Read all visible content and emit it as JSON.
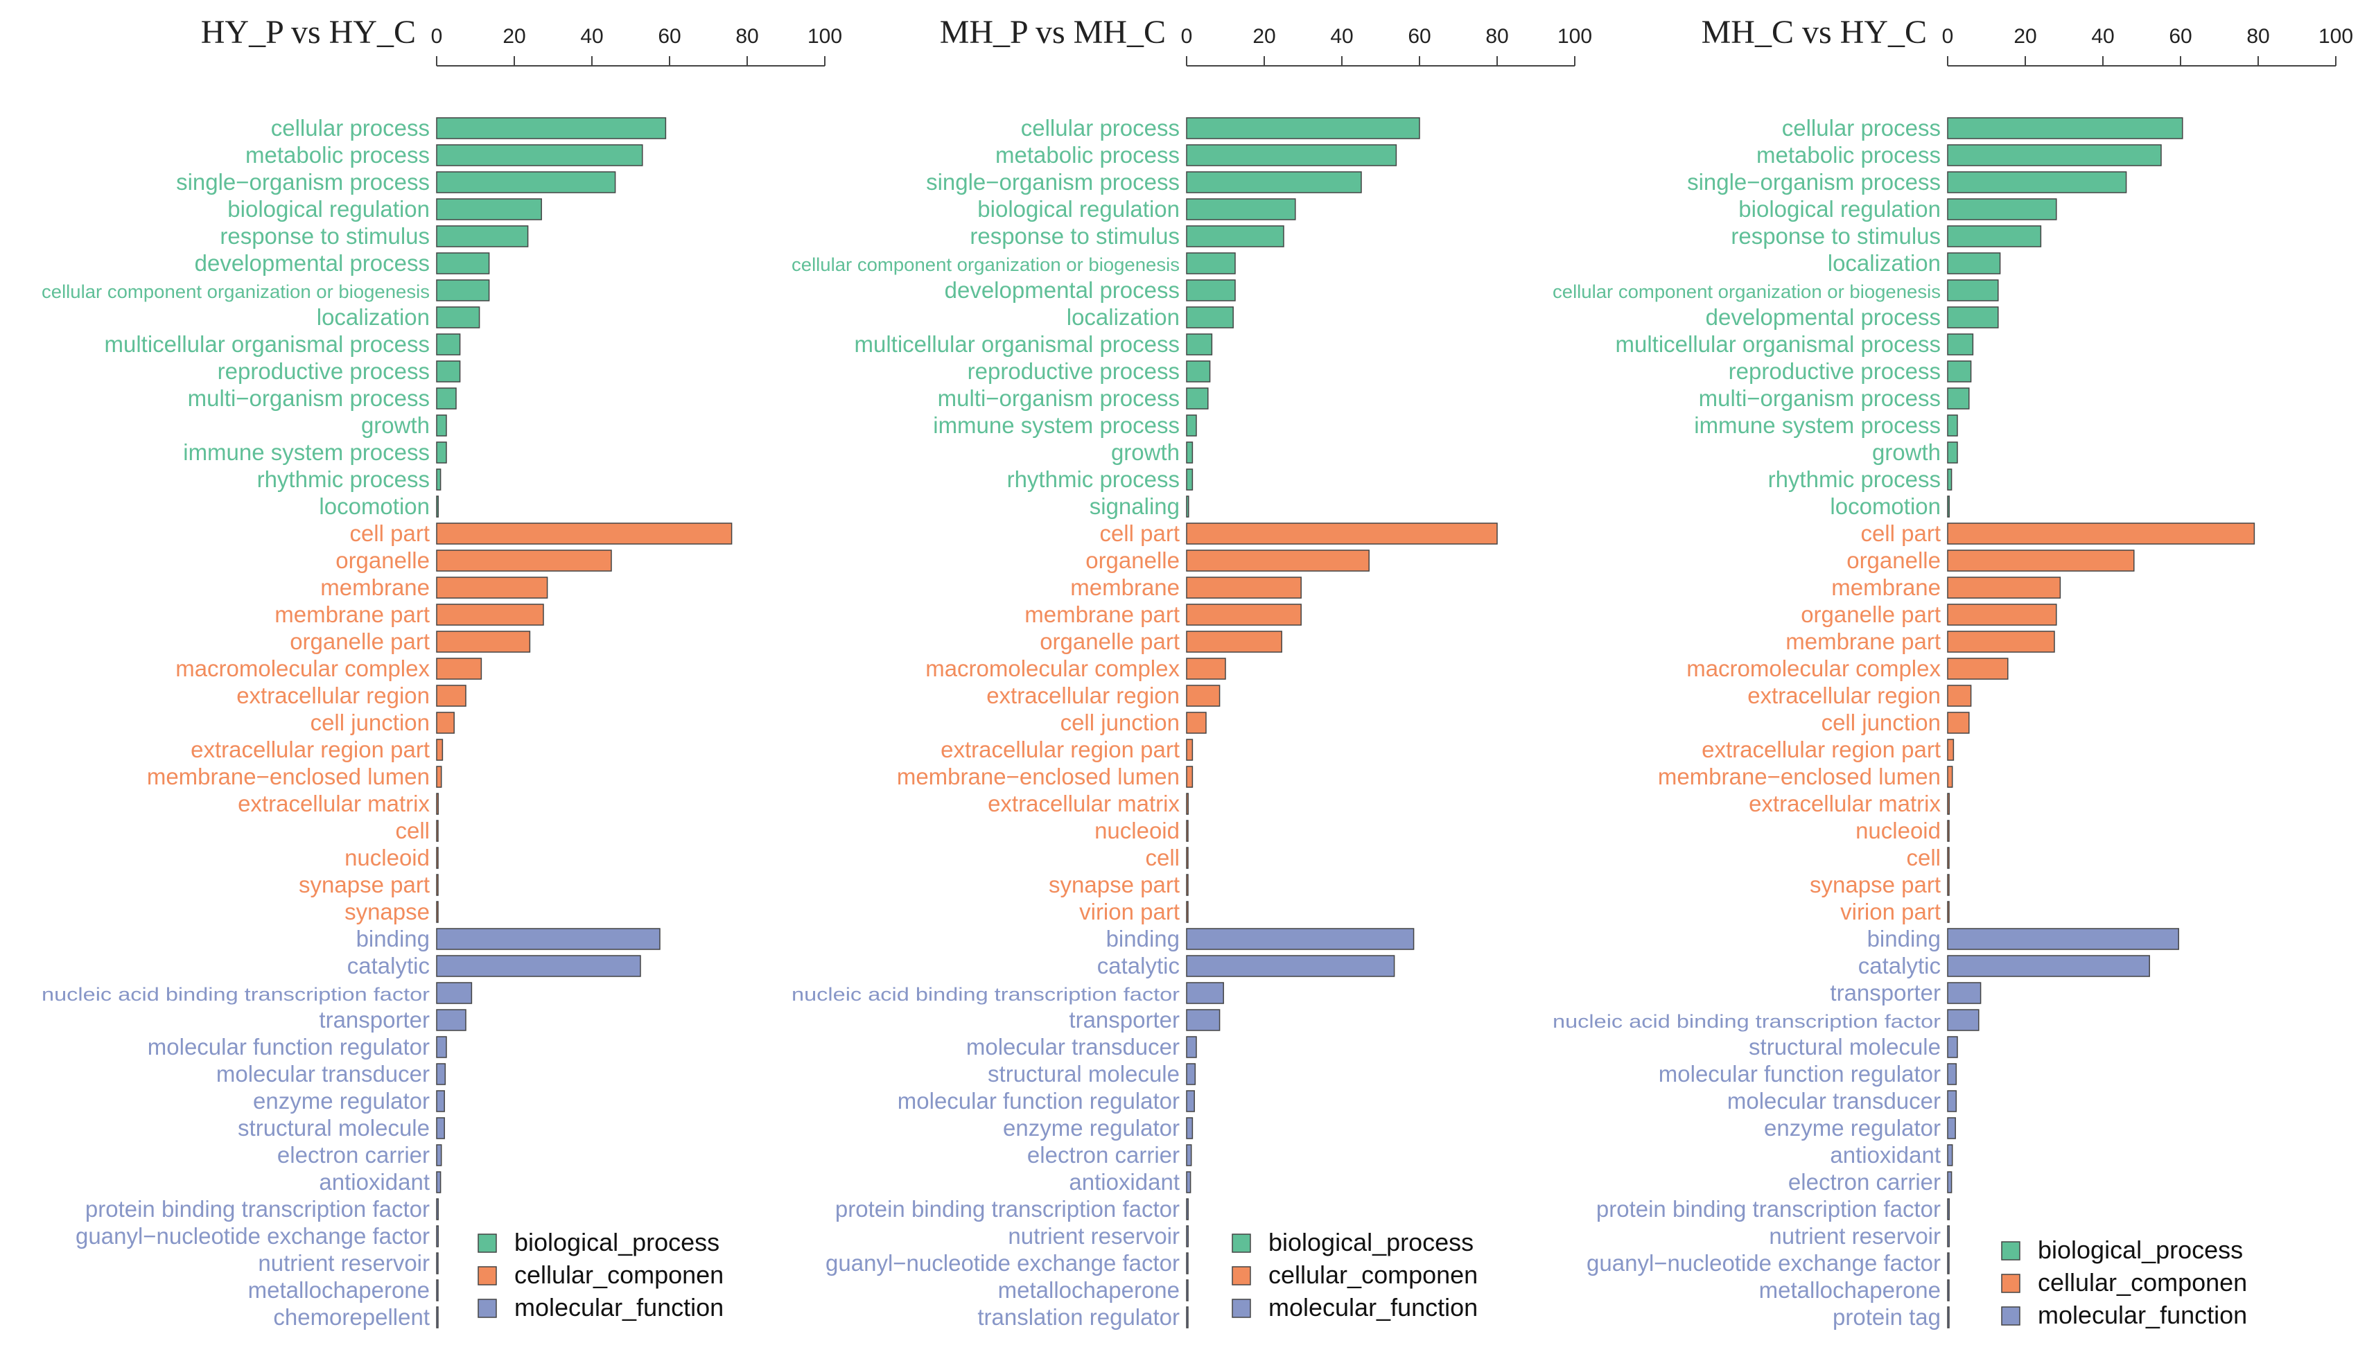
{
  "colors": {
    "biological_process": "#5fbf97",
    "cellular_component": "#f28c5c",
    "molecular_function": "#8796c7",
    "bar_stroke": "#444444",
    "axis": "#444444"
  },
  "chart_data": [
    {
      "type": "bar",
      "orientation": "horizontal",
      "title": "HY_P vs HY_C",
      "xlim": [
        0,
        100
      ],
      "ticks": [
        0,
        20,
        40,
        60,
        80,
        100
      ],
      "legend": [
        "biological_process",
        "cellular_componen",
        "molecular_function"
      ],
      "series": [
        {
          "name": "biological_process",
          "categories": [
            "cellular process",
            "metabolic process",
            "single−organism process",
            "biological regulation",
            "response to stimulus",
            "developmental process",
            "cellular component organization or biogenesis",
            "localization",
            "multicellular organismal process",
            "reproductive process",
            "multi−organism process",
            "growth",
            "immune system process",
            "rhythmic process",
            "locomotion"
          ],
          "values": [
            59,
            53,
            46,
            27,
            23.5,
            13.5,
            13.5,
            11,
            6,
            6,
            5,
            2.5,
            2.5,
            1,
            0.4
          ]
        },
        {
          "name": "cellular_component",
          "categories": [
            "cell part",
            "organelle",
            "membrane",
            "membrane part",
            "organelle part",
            "macromolecular complex",
            "extracellular region",
            "cell junction",
            "extracellular region part",
            "membrane−enclosed lumen",
            "extracellular matrix",
            "cell",
            "nucleoid",
            "synapse part",
            "synapse"
          ],
          "values": [
            76,
            45,
            28.5,
            27.5,
            24,
            11.5,
            7.5,
            4.5,
            1.5,
            1.2,
            0.4,
            0.3,
            0.3,
            0.3,
            0.3
          ]
        },
        {
          "name": "molecular_function",
          "categories": [
            "binding",
            "catalytic",
            "nucleic acid binding transcription factor",
            "transporter",
            "molecular function regulator",
            "molecular transducer",
            "enzyme regulator",
            "structural molecule",
            "electron carrier",
            "antioxidant",
            "protein binding transcription factor",
            "guanyl−nucleotide exchange factor",
            "nutrient reservoir",
            "metallochaperone",
            "chemorepellent"
          ],
          "values": [
            57.5,
            52.5,
            9,
            7.5,
            2.5,
            2.2,
            2,
            2,
            1.2,
            1,
            0.4,
            0.4,
            0.3,
            0.3,
            0.3
          ]
        }
      ]
    },
    {
      "type": "bar",
      "orientation": "horizontal",
      "title": "MH_P vs MH_C",
      "xlim": [
        0,
        100
      ],
      "ticks": [
        0,
        20,
        40,
        60,
        80,
        100
      ],
      "legend": [
        "biological_process",
        "cellular_componen",
        "molecular_function"
      ],
      "series": [
        {
          "name": "biological_process",
          "categories": [
            "cellular process",
            "metabolic process",
            "single−organism process",
            "biological regulation",
            "response to stimulus",
            "cellular component organization or biogenesis",
            "developmental process",
            "localization",
            "multicellular organismal process",
            "reproductive process",
            "multi−organism process",
            "immune system process",
            "growth",
            "rhythmic process",
            "signaling"
          ],
          "values": [
            60,
            54,
            45,
            28,
            25,
            12.5,
            12.5,
            12,
            6.5,
            6,
            5.5,
            2.5,
            1.5,
            1.5,
            0.5
          ]
        },
        {
          "name": "cellular_component",
          "categories": [
            "cell part",
            "organelle",
            "membrane",
            "membrane part",
            "organelle part",
            "macromolecular complex",
            "extracellular region",
            "cell junction",
            "extracellular region part",
            "membrane−enclosed lumen",
            "extracellular matrix",
            "nucleoid",
            "cell",
            "synapse part",
            "virion part"
          ],
          "values": [
            80,
            47,
            29.5,
            29.5,
            24.5,
            10,
            8.5,
            5,
            1.5,
            1.5,
            0.4,
            0.3,
            0.3,
            0.3,
            0.3
          ]
        },
        {
          "name": "molecular_function",
          "categories": [
            "binding",
            "catalytic",
            "nucleic acid binding transcription factor",
            "transporter",
            "molecular transducer",
            "structural molecule",
            "molecular function regulator",
            "enzyme regulator",
            "electron carrier",
            "antioxidant",
            "protein binding transcription factor",
            "nutrient reservoir",
            "guanyl−nucleotide exchange factor",
            "metallochaperone",
            "translation regulator"
          ],
          "values": [
            58.5,
            53.5,
            9.5,
            8.5,
            2.5,
            2.2,
            2,
            1.5,
            1.2,
            1,
            0.4,
            0.4,
            0.3,
            0.3,
            0.3
          ]
        }
      ]
    },
    {
      "type": "bar",
      "orientation": "horizontal",
      "title": "MH_C vs HY_C",
      "xlim": [
        0,
        100
      ],
      "ticks": [
        0,
        20,
        40,
        60,
        80,
        100
      ],
      "legend": [
        "biological_process",
        "cellular_componen",
        "molecular_function"
      ],
      "series": [
        {
          "name": "biological_process",
          "categories": [
            "cellular process",
            "metabolic process",
            "single−organism process",
            "biological regulation",
            "response to stimulus",
            "localization",
            "cellular component organization or biogenesis",
            "developmental process",
            "multicellular organismal process",
            "reproductive process",
            "multi−organism process",
            "immune system process",
            "growth",
            "rhythmic process",
            "locomotion"
          ],
          "values": [
            60.5,
            55,
            46,
            28,
            24,
            13.5,
            13,
            13,
            6.5,
            6,
            5.5,
            2.5,
            2.5,
            1,
            0.4
          ]
        },
        {
          "name": "cellular_component",
          "categories": [
            "cell part",
            "organelle",
            "membrane",
            "organelle part",
            "membrane part",
            "macromolecular complex",
            "extracellular region",
            "cell junction",
            "extracellular region part",
            "membrane−enclosed lumen",
            "extracellular matrix",
            "nucleoid",
            "cell",
            "synapse part",
            "virion part"
          ],
          "values": [
            79,
            48,
            29,
            28,
            27.5,
            15.5,
            6,
            5.5,
            1.5,
            1.2,
            0.4,
            0.3,
            0.3,
            0.3,
            0.3
          ]
        },
        {
          "name": "molecular_function",
          "categories": [
            "binding",
            "catalytic",
            "transporter",
            "nucleic acid binding transcription factor",
            "structural molecule",
            "molecular function regulator",
            "molecular transducer",
            "enzyme regulator",
            "antioxidant",
            "electron carrier",
            "protein binding transcription factor",
            "nutrient reservoir",
            "guanyl−nucleotide exchange factor",
            "metallochaperone",
            "protein tag"
          ],
          "values": [
            59.5,
            52,
            8.5,
            8,
            2.5,
            2.2,
            2.2,
            2,
            1.2,
            1,
            0.4,
            0.4,
            0.3,
            0.3,
            0.3
          ]
        }
      ]
    }
  ]
}
